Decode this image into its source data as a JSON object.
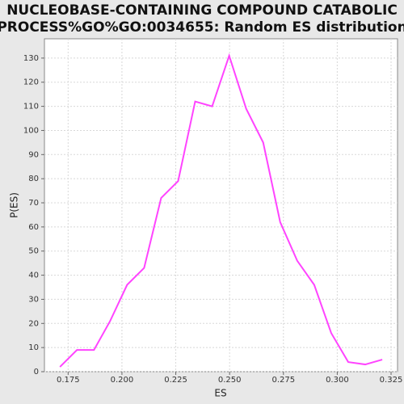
{
  "chart_data": {
    "type": "line",
    "title": [
      "NUCLEOBASE-CONTAINING COMPOUND CATABOLIC",
      "PROCESS%GO%GO:0034655: Random ES distribution"
    ],
    "x_label": "ES",
    "y_label": "P(ES)",
    "x": [
      0.1712,
      0.1791,
      0.187,
      0.1945,
      0.2024,
      0.2103,
      0.2182,
      0.2261,
      0.234,
      0.2419,
      0.2498,
      0.2577,
      0.2656,
      0.2735,
      0.2814,
      0.2893,
      0.2972,
      0.3051,
      0.313,
      0.3209
    ],
    "series": [
      {
        "name": "P(ES)",
        "color": "#ff44ff",
        "values": [
          2,
          9,
          9,
          21,
          36,
          43,
          72,
          79,
          112,
          110,
          131,
          109,
          95,
          62,
          46,
          36,
          16,
          4,
          3,
          5
        ]
      }
    ],
    "xlim": [
      0.164,
      0.328
    ],
    "xticks": [
      0.175,
      {
        "value": 0.2,
        "label": "0.200"
      },
      0.225,
      {
        "value": 0.25,
        "label": "0.250"
      },
      0.275,
      {
        "value": 0.3,
        "label": "0.300"
      },
      0.325
    ],
    "ylim": [
      0,
      138
    ],
    "yticks": [
      0,
      10,
      20,
      30,
      40,
      50,
      60,
      70,
      80,
      90,
      100,
      110,
      120,
      130
    ],
    "grid": true
  }
}
